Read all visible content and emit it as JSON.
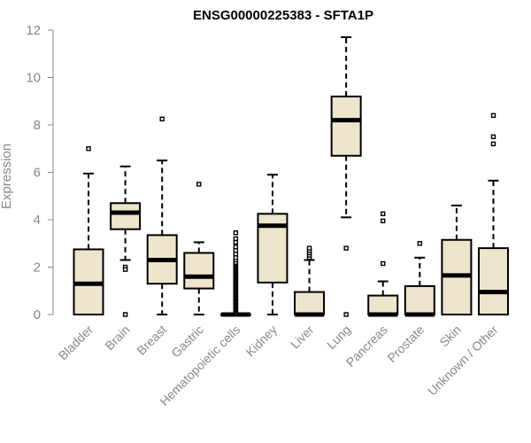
{
  "chart_data": {
    "type": "boxplot",
    "title": "ENSG00000225383 - SFTA1P",
    "xlabel": "",
    "ylabel": "Expression",
    "ylim": [
      0,
      12
    ],
    "yticks": [
      0,
      2,
      4,
      6,
      8,
      10,
      12
    ],
    "box_fill": "#ede5cc",
    "categories": [
      "Bladder",
      "Brain",
      "Breast",
      "Gastric",
      "Hematopoietic cells",
      "Kidney",
      "Liver",
      "Lung",
      "Pancreas",
      "Prostate",
      "Skin",
      "Unknown / Other"
    ],
    "boxes": [
      {
        "name": "Bladder",
        "whislo": 0,
        "q1": 0,
        "med": 1.3,
        "q3": 2.75,
        "whishi": 5.95,
        "fliers": [
          7.0
        ]
      },
      {
        "name": "Brain",
        "whislo": 2.3,
        "q1": 3.6,
        "med": 4.3,
        "q3": 4.7,
        "whishi": 6.25,
        "fliers": [
          2.0,
          1.9,
          0
        ]
      },
      {
        "name": "Breast",
        "whislo": 0,
        "q1": 1.3,
        "med": 2.3,
        "q3": 3.35,
        "whishi": 6.5,
        "fliers": [
          8.25
        ]
      },
      {
        "name": "Gastric",
        "whislo": 0,
        "q1": 1.1,
        "med": 1.6,
        "q3": 2.6,
        "whishi": 3.05,
        "fliers": [
          5.5
        ]
      },
      {
        "name": "Hematopoietic cells",
        "whislo": 0,
        "q1": 0,
        "med": 0,
        "q3": 0,
        "whishi": 0,
        "fliers": [
          0.05,
          0.1,
          0.15,
          0.2,
          0.25,
          0.3,
          0.35,
          0.4,
          0.45,
          0.5,
          0.55,
          0.6,
          0.65,
          0.7,
          0.75,
          0.8,
          0.85,
          0.9,
          0.95,
          1.0,
          1.05,
          1.1,
          1.15,
          1.2,
          1.25,
          1.3,
          1.35,
          1.4,
          1.45,
          1.5,
          1.55,
          1.6,
          1.65,
          1.7,
          1.75,
          1.8,
          1.85,
          1.9,
          1.95,
          2.0,
          2.05,
          2.1,
          2.15,
          2.2,
          2.3,
          2.4,
          2.55,
          2.7,
          2.85,
          3.05,
          3.2,
          3.45
        ]
      },
      {
        "name": "Kidney",
        "whislo": 0,
        "q1": 1.35,
        "med": 3.75,
        "q3": 4.25,
        "whishi": 5.9,
        "fliers": []
      },
      {
        "name": "Liver",
        "whislo": 0,
        "q1": 0,
        "med": 0,
        "q3": 0.95,
        "whishi": 2.3,
        "fliers": [
          2.4,
          2.5,
          2.6,
          2.7,
          2.8
        ]
      },
      {
        "name": "Lung",
        "whislo": 4.1,
        "q1": 6.7,
        "med": 8.2,
        "q3": 9.2,
        "whishi": 11.7,
        "fliers": [
          2.8,
          0
        ]
      },
      {
        "name": "Pancreas",
        "whislo": 0,
        "q1": 0,
        "med": 0,
        "q3": 0.8,
        "whishi": 1.4,
        "fliers": [
          2.15,
          3.95,
          4.25
        ]
      },
      {
        "name": "Prostate",
        "whislo": 0,
        "q1": 0,
        "med": 0,
        "q3": 1.2,
        "whishi": 2.4,
        "fliers": [
          3.0
        ]
      },
      {
        "name": "Skin",
        "whislo": 0,
        "q1": 0,
        "med": 1.65,
        "q3": 3.15,
        "whishi": 4.6,
        "fliers": []
      },
      {
        "name": "Unknown / Other",
        "whislo": 0,
        "q1": 0,
        "med": 0.95,
        "q3": 2.8,
        "whishi": 5.65,
        "fliers": [
          7.2,
          7.5,
          8.4
        ]
      }
    ]
  }
}
